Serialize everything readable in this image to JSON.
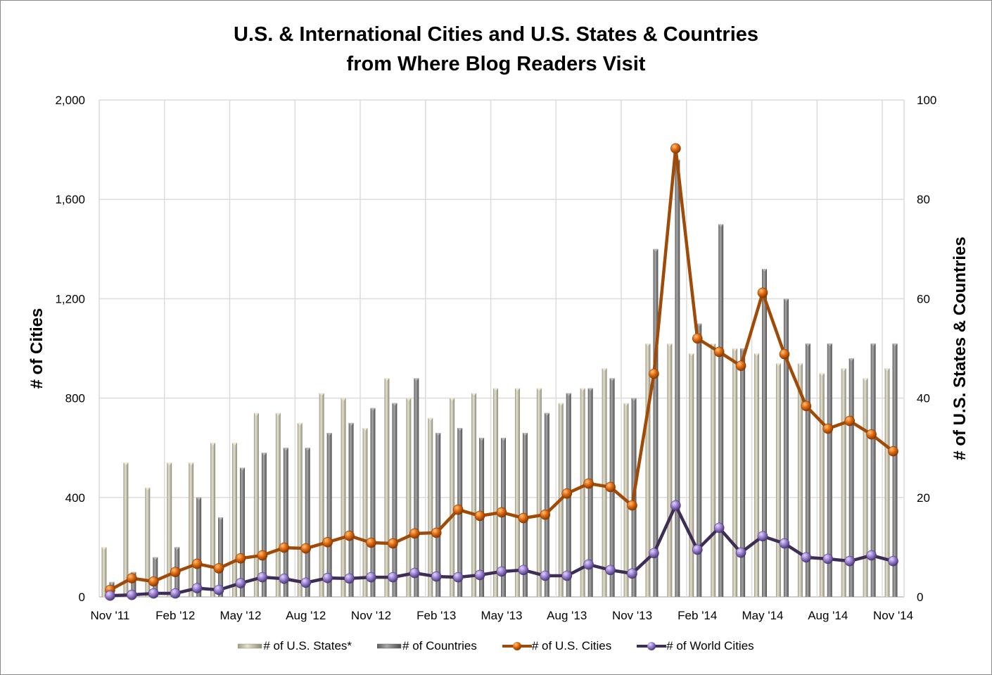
{
  "chart_data": {
    "type": "bar+line",
    "title_line1": "U.S. & International Cities and U.S. States & Countries",
    "title_line2": "from Where Blog Readers Visit",
    "ylabel_left": "# of Cities",
    "ylabel_right": "# of U.S. States & Countries",
    "ylim_left": [
      0,
      2000
    ],
    "ylim_right": [
      0,
      100
    ],
    "yticks_left": [
      "0",
      "400",
      "800",
      "1,200",
      "1,600",
      "2,000"
    ],
    "yticks_right": [
      "0",
      "20",
      "40",
      "60",
      "80",
      "100"
    ],
    "xtick_labels": [
      "Nov '11",
      "Feb '12",
      "May '12",
      "Aug '12",
      "Nov '12",
      "Feb '13",
      "May '13",
      "Aug '13",
      "Nov '13",
      "Feb '14",
      "May '14",
      "Aug '14",
      "Nov '14"
    ],
    "grid": true,
    "legend_position": "bottom",
    "months": [
      "Nov '11",
      "Dec '11",
      "Jan '12",
      "Feb '12",
      "Mar '12",
      "Apr '12",
      "May '12",
      "Jun '12",
      "Jul '12",
      "Aug '12",
      "Sep '12",
      "Oct '12",
      "Nov '12",
      "Dec '12",
      "Jan '13",
      "Feb '13",
      "Mar '13",
      "Apr '13",
      "May '13",
      "Jun '13",
      "Jul '13",
      "Aug '13",
      "Sep '13",
      "Oct '13",
      "Nov '13",
      "Dec '13",
      "Jan '14",
      "Feb '14",
      "Mar '14",
      "Apr '14",
      "May '14",
      "Jun '14",
      "Jul '14",
      "Aug '14",
      "Sep '14",
      "Oct '14",
      "Nov '14"
    ],
    "series": [
      {
        "name": "# of U.S. States*",
        "kind": "bar",
        "axis": "right",
        "color": "#c9c5b2",
        "values": [
          10,
          27,
          22,
          27,
          27,
          31,
          31,
          37,
          37,
          35,
          41,
          40,
          34,
          44,
          40,
          36,
          40,
          41,
          42,
          42,
          42,
          39,
          42,
          46,
          39,
          51,
          51,
          49,
          51,
          50,
          49,
          47,
          47,
          45,
          46,
          44,
          46
        ]
      },
      {
        "name": "# of Countries",
        "kind": "bar",
        "axis": "right",
        "color": "#8c8c8c",
        "values": [
          3,
          5,
          8,
          10,
          20,
          16,
          26,
          29,
          30,
          30,
          33,
          35,
          38,
          39,
          44,
          33,
          34,
          32,
          32,
          33,
          37,
          41,
          42,
          44,
          40,
          70,
          88,
          55,
          75,
          50,
          66,
          60,
          51,
          51,
          48,
          51,
          51
        ]
      },
      {
        "name": "# of U.S. Cities",
        "kind": "line",
        "axis": "left",
        "color": "#a04a08",
        "marker_color": "#e06a10",
        "values": [
          28,
          75,
          62,
          100,
          133,
          115,
          155,
          167,
          198,
          195,
          220,
          246,
          218,
          215,
          255,
          258,
          351,
          326,
          340,
          317,
          331,
          416,
          456,
          442,
          368,
          898,
          1805,
          1040,
          986,
          930,
          1224,
          977,
          768,
          677,
          708,
          654,
          586
        ]
      },
      {
        "name": "# of World Cities",
        "kind": "line",
        "axis": "left",
        "color": "#3e2d55",
        "marker_color": "#9a7fd0",
        "values": [
          5,
          8,
          14,
          14,
          35,
          28,
          55,
          79,
          73,
          57,
          76,
          74,
          79,
          79,
          96,
          82,
          79,
          88,
          102,
          108,
          85,
          85,
          130,
          108,
          94,
          176,
          368,
          190,
          278,
          178,
          244,
          215,
          159,
          153,
          144,
          167,
          144
        ]
      }
    ]
  }
}
